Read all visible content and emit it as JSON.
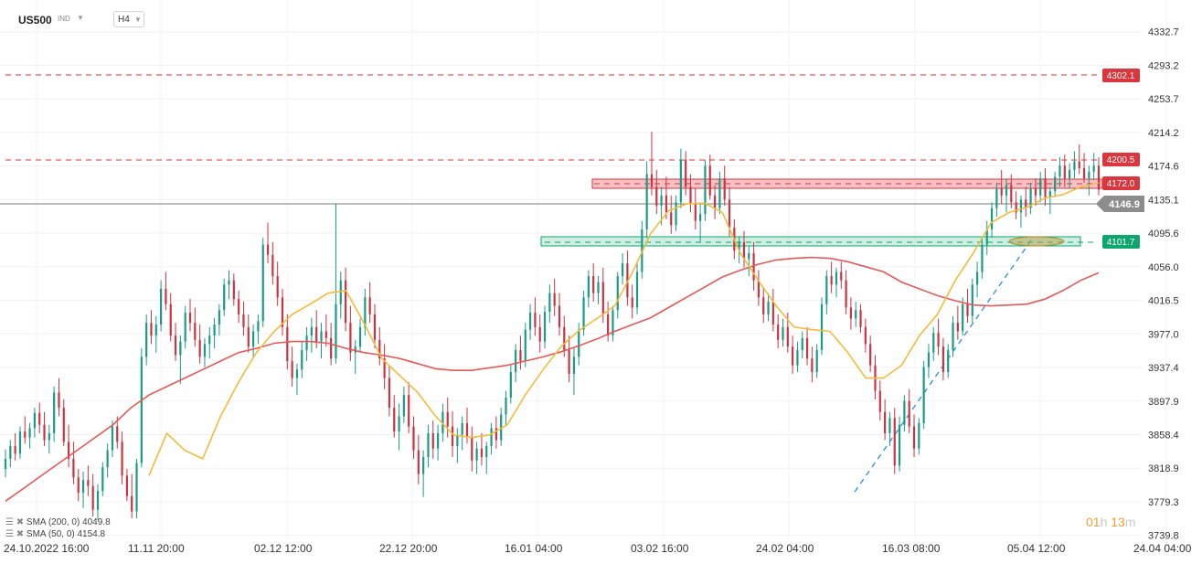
{
  "instrument": {
    "symbol": "US500",
    "asset_class": "IND",
    "timeframe": "H4"
  },
  "colors": {
    "bull": "#1a9b85",
    "bear": "#cc3340",
    "sma200": "#e05a5a",
    "sma50": "#f2bb3c",
    "resistance": "#d9363e",
    "support": "#0fa66d",
    "trendline": "#2a8ee0",
    "price_line": "#777777"
  },
  "price_axis": {
    "ticks": [
      "4332.7",
      "4293.2",
      "4253.7",
      "4214.2",
      "4174.6",
      "4135.1",
      "4095.6",
      "4056.0",
      "4016.5",
      "3977.0",
      "3937.4",
      "3897.9",
      "3858.4",
      "3818.9",
      "3779.3",
      "3739.8"
    ]
  },
  "time_axis": {
    "labels": [
      "24.10.2022  16:00",
      "11.11  20:00",
      "02.12  12:00",
      "22.12  20:00",
      "16.01  04:00",
      "03.02  16:00",
      "24.02  04:00",
      "16.03  08:00",
      "05.04  12:00",
      "24.04  04:00"
    ]
  },
  "levels": [
    {
      "name": "resistance-4302",
      "label": "4302.1",
      "color": "#d9363e"
    },
    {
      "name": "resistance-4200",
      "label": "4200.5",
      "color": "#d9363e"
    },
    {
      "name": "resistance-4172",
      "label": "4172.0",
      "color": "#d9363e"
    },
    {
      "name": "support-4101",
      "label": "4101.7",
      "color": "#0fa66d"
    }
  ],
  "current_price": {
    "label": "4146.9"
  },
  "indicators": [
    {
      "label": "SMA (200, 0)  4049.8",
      "color": "#e05a5a"
    },
    {
      "label": "SMA (50, 0)  4154.8",
      "color": "#f2bb3c"
    }
  ],
  "countdown": {
    "hours": "01",
    "h_unit": "h",
    "minutes": "13",
    "m_unit": "m"
  },
  "chart_data": {
    "type": "candlestick",
    "ylim": [
      3733,
      4355
    ],
    "sma200": [
      3780,
      3795,
      3810,
      3825,
      3840,
      3855,
      3870,
      3890,
      3905,
      3915,
      3925,
      3935,
      3945,
      3955,
      3960,
      3966,
      3968,
      3968,
      3966,
      3960,
      3955,
      3952,
      3948,
      3942,
      3936,
      3934,
      3934,
      3937,
      3940,
      3945,
      3950,
      3956,
      3963,
      3971,
      3980,
      3988,
      3996,
      4008,
      4020,
      4032,
      4044,
      4052,
      4059,
      4064,
      4066,
      4067,
      4066,
      4062,
      4056,
      4050,
      4038,
      4030,
      4022,
      4016,
      4011,
      4010,
      4011,
      4012,
      4018,
      4028,
      4040,
      4049
    ],
    "sma50": [
      3810,
      3860,
      3840,
      3830,
      3880,
      3920,
      3955,
      3980,
      4000,
      4012,
      4025,
      4028,
      3990,
      3948,
      3928,
      3908,
      3880,
      3858,
      3855,
      3858,
      3870,
      3905,
      3935,
      3962,
      3981,
      3995,
      4010,
      4050,
      4095,
      4122,
      4130,
      4131,
      4120,
      4072,
      4040,
      4010,
      3985,
      3982,
      3980,
      3955,
      3925,
      3925,
      3940,
      3975,
      4000,
      4040,
      4072,
      4108,
      4120,
      4126,
      4137,
      4141,
      4150,
      4155
    ],
    "sma50_start_index": 8,
    "ohlc": [
      [
        3818,
        3841,
        3808,
        3830
      ],
      [
        3830,
        3852,
        3820,
        3845
      ],
      [
        3845,
        3860,
        3828,
        3836
      ],
      [
        3836,
        3868,
        3830,
        3862
      ],
      [
        3862,
        3880,
        3848,
        3855
      ],
      [
        3855,
        3872,
        3842,
        3866
      ],
      [
        3866,
        3890,
        3855,
        3884
      ],
      [
        3884,
        3896,
        3860,
        3870
      ],
      [
        3870,
        3885,
        3845,
        3852
      ],
      [
        3852,
        3870,
        3836,
        3860
      ],
      [
        3860,
        3915,
        3850,
        3908
      ],
      [
        3908,
        3925,
        3880,
        3890
      ],
      [
        3890,
        3900,
        3845,
        3850
      ],
      [
        3850,
        3870,
        3820,
        3830
      ],
      [
        3830,
        3850,
        3800,
        3808
      ],
      [
        3808,
        3818,
        3780,
        3790
      ],
      [
        3790,
        3815,
        3772,
        3805
      ],
      [
        3805,
        3822,
        3786,
        3798
      ],
      [
        3798,
        3812,
        3762,
        3770
      ],
      [
        3770,
        3800,
        3758,
        3792
      ],
      [
        3792,
        3826,
        3786,
        3820
      ],
      [
        3820,
        3848,
        3808,
        3840
      ],
      [
        3840,
        3875,
        3832,
        3868
      ],
      [
        3868,
        3880,
        3842,
        3850
      ],
      [
        3850,
        3862,
        3800,
        3810
      ],
      [
        3810,
        3818,
        3780,
        3786
      ],
      [
        3786,
        3812,
        3760,
        3768
      ],
      [
        3768,
        3830,
        3760,
        3825
      ],
      [
        3825,
        3960,
        3820,
        3950
      ],
      [
        3950,
        4000,
        3940,
        3990
      ],
      [
        3990,
        4005,
        3965,
        3975
      ],
      [
        3975,
        3998,
        3955,
        3988
      ],
      [
        3988,
        4040,
        3980,
        4030
      ],
      [
        4030,
        4050,
        4005,
        4012
      ],
      [
        4012,
        4025,
        3968,
        3975
      ],
      [
        3975,
        3990,
        3945,
        3952
      ],
      [
        3952,
        3975,
        3918,
        3968
      ],
      [
        3968,
        4010,
        3960,
        4002
      ],
      [
        4002,
        4018,
        3980,
        3990
      ],
      [
        3990,
        4008,
        3962,
        3970
      ],
      [
        3970,
        3988,
        3942,
        3950
      ],
      [
        3950,
        3972,
        3938,
        3965
      ],
      [
        3965,
        3985,
        3948,
        3975
      ],
      [
        3975,
        3996,
        3960,
        3988
      ],
      [
        3988,
        4012,
        3975,
        4005
      ],
      [
        4005,
        4042,
        3998,
        4035
      ],
      [
        4035,
        4052,
        4018,
        4040
      ],
      [
        4040,
        4048,
        4010,
        4018
      ],
      [
        4018,
        4028,
        3990,
        4000
      ],
      [
        4000,
        4015,
        3975,
        3985
      ],
      [
        3985,
        4000,
        3955,
        3962
      ],
      [
        3962,
        3988,
        3948,
        3980
      ],
      [
        3980,
        4000,
        3965,
        3992
      ],
      [
        3992,
        4090,
        3985,
        4082
      ],
      [
        4082,
        4108,
        4060,
        4070
      ],
      [
        4070,
        4085,
        4035,
        4045
      ],
      [
        4045,
        4062,
        4010,
        4020
      ],
      [
        4020,
        4030,
        3975,
        3985
      ],
      [
        3985,
        4000,
        3935,
        3945
      ],
      [
        3945,
        3962,
        3915,
        3925
      ],
      [
        3925,
        3942,
        3905,
        3935
      ],
      [
        3935,
        3968,
        3925,
        3958
      ],
      [
        3958,
        3985,
        3945,
        3975
      ],
      [
        3975,
        3996,
        3955,
        3985
      ],
      [
        3985,
        4005,
        3960,
        3968
      ],
      [
        3968,
        3990,
        3948,
        3980
      ],
      [
        3980,
        4000,
        3962,
        3972
      ],
      [
        3972,
        3990,
        3940,
        3948
      ],
      [
        3948,
        4130,
        3942,
        4012
      ],
      [
        4012,
        4050,
        3995,
        4040
      ],
      [
        4040,
        4055,
        3980,
        3990
      ],
      [
        3990,
        4010,
        3945,
        3955
      ],
      [
        3955,
        3970,
        3930,
        3962
      ],
      [
        3962,
        3995,
        3955,
        3985
      ],
      [
        3985,
        4030,
        3975,
        4020
      ],
      [
        4020,
        4038,
        3990,
        4000
      ],
      [
        4000,
        4012,
        3960,
        3970
      ],
      [
        3970,
        3985,
        3940,
        3948
      ],
      [
        3948,
        3965,
        3912,
        3925
      ],
      [
        3925,
        3940,
        3880,
        3890
      ],
      [
        3890,
        3905,
        3855,
        3862
      ],
      [
        3862,
        3895,
        3840,
        3880
      ],
      [
        3880,
        3915,
        3872,
        3905
      ],
      [
        3905,
        3920,
        3860,
        3868
      ],
      [
        3868,
        3880,
        3830,
        3840
      ],
      [
        3840,
        3858,
        3800,
        3812
      ],
      [
        3812,
        3840,
        3785,
        3832
      ],
      [
        3832,
        3870,
        3820,
        3860
      ],
      [
        3860,
        3875,
        3830,
        3842
      ],
      [
        3842,
        3870,
        3828,
        3860
      ],
      [
        3860,
        3895,
        3850,
        3885
      ],
      [
        3885,
        3902,
        3855,
        3868
      ],
      [
        3868,
        3886,
        3832,
        3845
      ],
      [
        3845,
        3866,
        3825,
        3858
      ],
      [
        3858,
        3880,
        3840,
        3872
      ],
      [
        3872,
        3890,
        3848,
        3856
      ],
      [
        3856,
        3868,
        3815,
        3828
      ],
      [
        3828,
        3850,
        3812,
        3842
      ],
      [
        3842,
        3860,
        3822,
        3832
      ],
      [
        3832,
        3850,
        3812,
        3845
      ],
      [
        3845,
        3872,
        3835,
        3866
      ],
      [
        3866,
        3880,
        3842,
        3852
      ],
      [
        3852,
        3890,
        3845,
        3882
      ],
      [
        3882,
        3910,
        3870,
        3902
      ],
      [
        3902,
        3940,
        3895,
        3932
      ],
      [
        3932,
        3965,
        3920,
        3958
      ],
      [
        3958,
        3975,
        3935,
        3945
      ],
      [
        3945,
        3990,
        3938,
        3982
      ],
      [
        3982,
        4012,
        3970,
        4002
      ],
      [
        4002,
        4020,
        3975,
        3985
      ],
      [
        3985,
        4000,
        3955,
        3968
      ],
      [
        3968,
        4010,
        3960,
        4003
      ],
      [
        4003,
        4035,
        3990,
        4025
      ],
      [
        4025,
        4042,
        3998,
        4010
      ],
      [
        4010,
        4025,
        3975,
        3985
      ],
      [
        3985,
        3998,
        3950,
        3958
      ],
      [
        3958,
        3975,
        3920,
        3930
      ],
      [
        3930,
        3960,
        3905,
        3950
      ],
      [
        3950,
        3990,
        3940,
        3982
      ],
      [
        3982,
        4028,
        3975,
        4020
      ],
      [
        4020,
        4052,
        4008,
        4045
      ],
      [
        4045,
        4060,
        4015,
        4025
      ],
      [
        4025,
        4045,
        4012,
        4038
      ],
      [
        4038,
        4055,
        3990,
        4000
      ],
      [
        4000,
        4015,
        3968,
        3975
      ],
      [
        3975,
        4010,
        3968,
        4005
      ],
      [
        4005,
        4050,
        3995,
        4045
      ],
      [
        4045,
        4072,
        4035,
        4060
      ],
      [
        4060,
        4075,
        4010,
        4020
      ],
      [
        4020,
        4035,
        3995,
        4008
      ],
      [
        4008,
        4060,
        4000,
        4050
      ],
      [
        4050,
        4110,
        4042,
        4100
      ],
      [
        4100,
        4180,
        4090,
        4165
      ],
      [
        4165,
        4215,
        4140,
        4150
      ],
      [
        4150,
        4170,
        4118,
        4128
      ],
      [
        4128,
        4150,
        4105,
        4140
      ],
      [
        4140,
        4162,
        4112,
        4120
      ],
      [
        4120,
        4140,
        4095,
        4105
      ],
      [
        4105,
        4140,
        4098,
        4132
      ],
      [
        4132,
        4195,
        4125,
        4182
      ],
      [
        4182,
        4192,
        4140,
        4150
      ],
      [
        4150,
        4165,
        4120,
        4130
      ],
      [
        4130,
        4148,
        4100,
        4110
      ],
      [
        4110,
        4130,
        4085,
        4118
      ],
      [
        4118,
        4182,
        4110,
        4175
      ],
      [
        4175,
        4188,
        4135,
        4140
      ],
      [
        4140,
        4152,
        4112,
        4125
      ],
      [
        4125,
        4168,
        4118,
        4160
      ],
      [
        4160,
        4175,
        4128,
        4135
      ],
      [
        4135,
        4150,
        4092,
        4102
      ],
      [
        4102,
        4112,
        4065,
        4075
      ],
      [
        4075,
        4092,
        4060,
        4085
      ],
      [
        4085,
        4098,
        4055,
        4065
      ],
      [
        4065,
        4080,
        4045,
        4072
      ],
      [
        4072,
        4085,
        4028,
        4040
      ],
      [
        4040,
        4052,
        4010,
        4020
      ],
      [
        4020,
        4032,
        3990,
        4000
      ],
      [
        4000,
        4025,
        3992,
        4015
      ],
      [
        4015,
        4030,
        3980,
        3988
      ],
      [
        3988,
        4000,
        3960,
        3970
      ],
      [
        3970,
        3995,
        3962,
        3985
      ],
      [
        3985,
        4002,
        3955,
        3962
      ],
      [
        3962,
        3975,
        3930,
        3940
      ],
      [
        3940,
        3968,
        3932,
        3958
      ],
      [
        3958,
        3980,
        3948,
        3972
      ],
      [
        3972,
        3985,
        3940,
        3948
      ],
      [
        3948,
        3962,
        3920,
        3932
      ],
      [
        3932,
        3965,
        3925,
        3958
      ],
      [
        3958,
        4020,
        3952,
        4012
      ],
      [
        4012,
        4052,
        4000,
        4045
      ],
      [
        4045,
        4062,
        4025,
        4035
      ],
      [
        4035,
        4055,
        4020,
        4050
      ],
      [
        4050,
        4062,
        4030,
        4040
      ],
      [
        4040,
        4052,
        4000,
        4008
      ],
      [
        4008,
        4020,
        3982,
        3995
      ],
      [
        3995,
        4015,
        3985,
        4005
      ],
      [
        4005,
        4012,
        3978,
        3985
      ],
      [
        3985,
        3995,
        3955,
        3965
      ],
      [
        3965,
        3975,
        3932,
        3940
      ],
      [
        3940,
        3952,
        3900,
        3910
      ],
      [
        3910,
        3922,
        3875,
        3885
      ],
      [
        3885,
        3900,
        3852,
        3860
      ],
      [
        3860,
        3885,
        3845,
        3878
      ],
      [
        3878,
        3890,
        3812,
        3822
      ],
      [
        3822,
        3880,
        3815,
        3870
      ],
      [
        3870,
        3905,
        3862,
        3898
      ],
      [
        3898,
        3912,
        3860,
        3868
      ],
      [
        3868,
        3882,
        3832,
        3842
      ],
      [
        3842,
        3878,
        3835,
        3872
      ],
      [
        3872,
        3945,
        3865,
        3938
      ],
      [
        3938,
        3965,
        3925,
        3955
      ],
      [
        3955,
        3985,
        3945,
        3978
      ],
      [
        3978,
        3995,
        3952,
        3962
      ],
      [
        3962,
        3972,
        3922,
        3932
      ],
      [
        3932,
        3965,
        3925,
        3958
      ],
      [
        3958,
        3998,
        3950,
        3990
      ],
      [
        3990,
        4010,
        3970,
        3980
      ],
      [
        3980,
        4020,
        3975,
        4012
      ],
      [
        4012,
        4030,
        3990,
        3998
      ],
      [
        3998,
        4042,
        3990,
        4035
      ],
      [
        4035,
        4062,
        4020,
        4050
      ],
      [
        4050,
        4090,
        4042,
        4082
      ],
      [
        4082,
        4110,
        4070,
        4100
      ],
      [
        4100,
        4132,
        4090,
        4125
      ],
      [
        4125,
        4155,
        4115,
        4148
      ],
      [
        4148,
        4170,
        4130,
        4140
      ],
      [
        4140,
        4160,
        4120,
        4152
      ],
      [
        4152,
        4165,
        4125,
        4132
      ],
      [
        4132,
        4145,
        4112,
        4120
      ],
      [
        4120,
        4140,
        4102,
        4135
      ],
      [
        4135,
        4150,
        4115,
        4125
      ],
      [
        4125,
        4155,
        4118,
        4148
      ],
      [
        4148,
        4160,
        4128,
        4140
      ],
      [
        4140,
        4168,
        4132,
        4160
      ],
      [
        4160,
        4172,
        4128,
        4138
      ],
      [
        4138,
        4150,
        4118,
        4145
      ],
      [
        4145,
        4168,
        4138,
        4162
      ],
      [
        4162,
        4185,
        4150,
        4175
      ],
      [
        4175,
        4188,
        4150,
        4160
      ],
      [
        4160,
        4178,
        4148,
        4170
      ],
      [
        4170,
        4192,
        4160,
        4180
      ],
      [
        4180,
        4200,
        4165,
        4172
      ],
      [
        4172,
        4190,
        4155,
        4160
      ],
      [
        4160,
        4175,
        4140,
        4168
      ],
      [
        4168,
        4190,
        4158,
        4175
      ],
      [
        4175,
        4185,
        4140,
        4147
      ]
    ]
  }
}
